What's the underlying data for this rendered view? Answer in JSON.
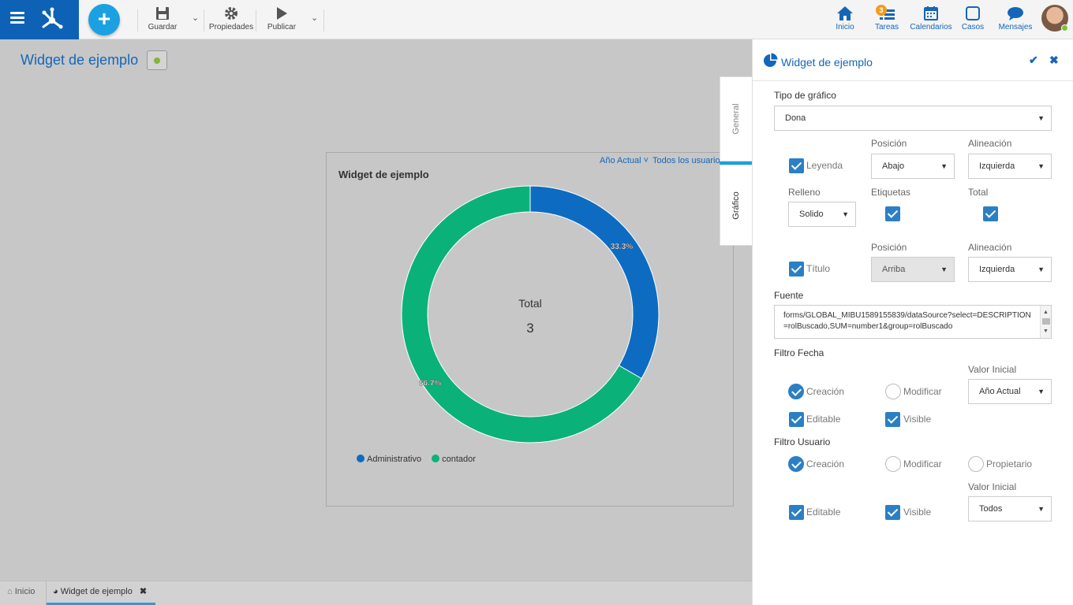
{
  "toolbar": {
    "save_label": "Guardar",
    "properties_label": "Propiedades",
    "publish_label": "Publicar",
    "add_label": "+"
  },
  "nav": {
    "home_label": "Inicio",
    "tasks_label": "Tareas",
    "tasks_badge": "3",
    "calendars_label": "Calendarios",
    "cases_label": "Casos",
    "messages_label": "Mensajes"
  },
  "page": {
    "title": "Widget de ejemplo"
  },
  "widget": {
    "title": "Widget de ejemplo",
    "filter_year": "Año Actual",
    "filter_user": "Todos los usuarios",
    "center_label": "Total",
    "center_value": "3"
  },
  "chart_data": {
    "type": "pie",
    "variant": "donut",
    "categories": [
      "Administrativo",
      "contador"
    ],
    "values": [
      1,
      2
    ],
    "labels": [
      "33.3%",
      "66.7%"
    ],
    "colors": [
      "#0d6cc2",
      "#0ab27a"
    ],
    "legend_position": "bottom-left"
  },
  "bottom_tabs": {
    "home": "Inicio",
    "widget": "Widget de ejemplo"
  },
  "side_tabs": {
    "general": "General",
    "chart": "Gráfico"
  },
  "panel": {
    "title": "Widget de ejemplo",
    "chart_type_label": "Tipo de gráfico",
    "chart_type_value": "Dona",
    "position_label": "Posición",
    "alignment_label": "Alineación",
    "legend_label": "Leyenda",
    "legend_position": "Abajo",
    "legend_alignment": "Izquierda",
    "fill_label": "Relleno",
    "labels_label": "Etiquetas",
    "total_label": "Total",
    "fill_value": "Solido",
    "title_position_label": "Posición",
    "title_alignment_label": "Alineación",
    "title_label": "Título",
    "title_position": "Arriba",
    "title_alignment": "Izquierda",
    "source_label": "Fuente",
    "source_value": "forms/GLOBAL_MIBU1589155839/dataSource?select=DESCRIPTION=rolBuscado,SUM=number1&group=rolBuscado",
    "date_filter_label": "Filtro Fecha",
    "initial_value_label": "Valor Inicial",
    "date_creation": "Creación",
    "date_modify": "Modificar",
    "date_initial": "Año Actual",
    "date_editable": "Editable",
    "date_visible": "Visible",
    "user_filter_label": "Filtro Usuario",
    "user_creation": "Creación",
    "user_modify": "Modificar",
    "user_owner": "Propietario",
    "user_initial_label": "Valor Inicial",
    "user_editable": "Editable",
    "user_visible": "Visible",
    "user_initial": "Todos"
  }
}
